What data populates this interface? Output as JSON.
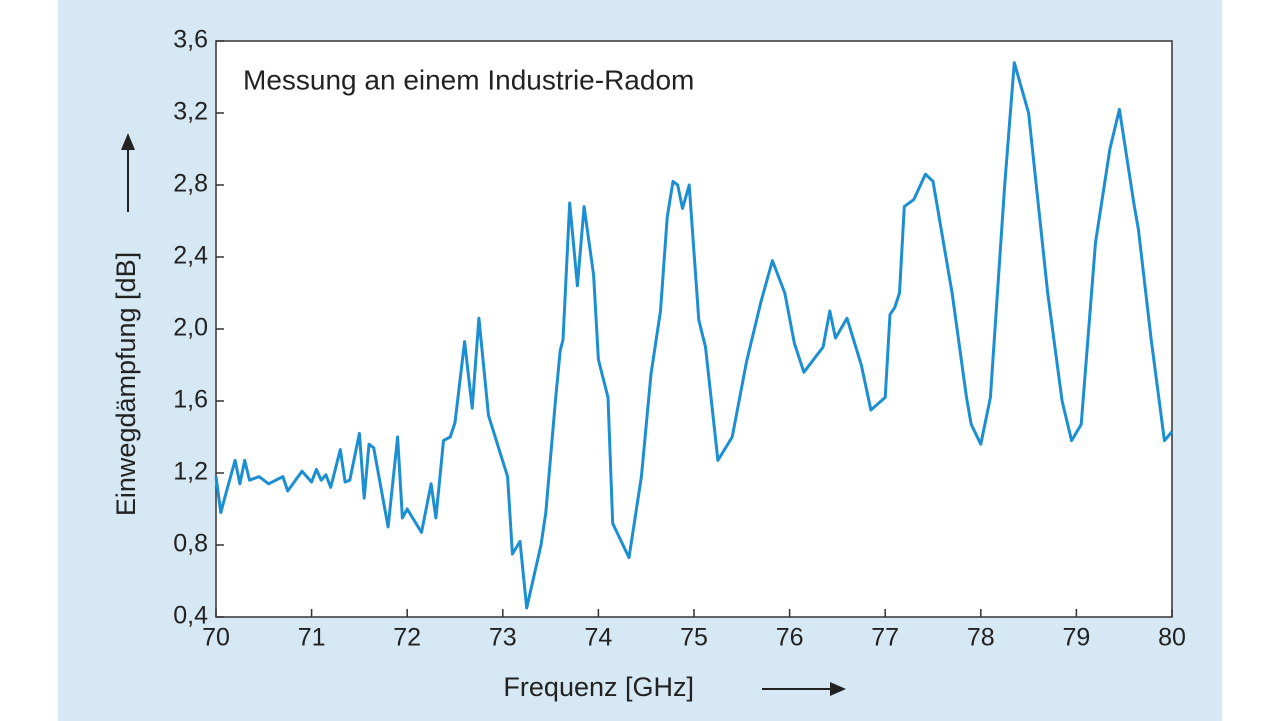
{
  "chart_data": {
    "type": "line",
    "annotation": "Messung an einem Industrie-Radom",
    "x_label": "Frequenz [GHz]",
    "y_label": "Einwegdämpfung [dB]",
    "xlim": [
      70,
      80
    ],
    "xticks": [
      70,
      71,
      72,
      73,
      74,
      75,
      76,
      77,
      78,
      79,
      80
    ],
    "ylim": [
      0.4,
      3.6
    ],
    "yticks": [
      {
        "value": 0.4,
        "label": "0,4"
      },
      {
        "value": 0.8,
        "label": "0,8"
      },
      {
        "value": 1.2,
        "label": "1,2"
      },
      {
        "value": 1.6,
        "label": "1,6"
      },
      {
        "value": 2.0,
        "label": "2,0"
      },
      {
        "value": 2.4,
        "label": "2,4"
      },
      {
        "value": 2.8,
        "label": "2,8"
      },
      {
        "value": 3.2,
        "label": "3,2"
      },
      {
        "value": 3.6,
        "label": "3,6"
      }
    ],
    "color": "#1b8fd2",
    "x": [
      70.0,
      70.05,
      70.1,
      70.2,
      70.25,
      70.3,
      70.35,
      70.45,
      70.55,
      70.7,
      70.75,
      70.9,
      71.0,
      71.05,
      71.1,
      71.15,
      71.2,
      71.3,
      71.35,
      71.4,
      71.5,
      71.55,
      71.6,
      71.65,
      71.8,
      71.9,
      71.95,
      72.0,
      72.15,
      72.25,
      72.3,
      72.38,
      72.45,
      72.5,
      72.6,
      72.68,
      72.75,
      72.85,
      72.95,
      73.05,
      73.1,
      73.18,
      73.25,
      73.4,
      73.45,
      73.55,
      73.6,
      73.63,
      73.7,
      73.78,
      73.85,
      73.95,
      74.0,
      74.1,
      74.15,
      74.32,
      74.45,
      74.55,
      74.65,
      74.72,
      74.78,
      74.83,
      74.88,
      74.95,
      75.05,
      75.12,
      75.25,
      75.4,
      75.55,
      75.7,
      75.82,
      75.95,
      76.05,
      76.15,
      76.35,
      76.42,
      76.48,
      76.6,
      76.75,
      76.85,
      77.0,
      77.05,
      77.1,
      77.15,
      77.2,
      77.3,
      77.42,
      77.5,
      77.7,
      77.85,
      77.9,
      78.0,
      78.1,
      78.25,
      78.35,
      78.5,
      78.7,
      78.85,
      78.95,
      79.05,
      79.2,
      79.35,
      79.45,
      79.6,
      79.65,
      79.78,
      79.92,
      80.0
    ],
    "values": [
      1.18,
      0.98,
      1.08,
      1.27,
      1.14,
      1.27,
      1.16,
      1.18,
      1.14,
      1.18,
      1.1,
      1.21,
      1.15,
      1.22,
      1.16,
      1.19,
      1.12,
      1.33,
      1.15,
      1.16,
      1.42,
      1.06,
      1.36,
      1.34,
      0.9,
      1.4,
      0.95,
      1.0,
      0.87,
      1.14,
      0.95,
      1.38,
      1.4,
      1.48,
      1.93,
      1.56,
      2.06,
      1.52,
      1.35,
      1.18,
      0.75,
      0.82,
      0.45,
      0.8,
      0.98,
      1.6,
      1.88,
      1.94,
      2.7,
      2.24,
      2.68,
      2.3,
      1.83,
      1.62,
      0.92,
      0.73,
      1.18,
      1.75,
      2.1,
      2.62,
      2.82,
      2.8,
      2.67,
      2.8,
      2.05,
      1.9,
      1.27,
      1.4,
      1.82,
      2.15,
      2.38,
      2.2,
      1.92,
      1.76,
      1.9,
      2.1,
      1.95,
      2.06,
      1.8,
      1.55,
      1.62,
      2.08,
      2.12,
      2.2,
      2.68,
      2.72,
      2.86,
      2.82,
      2.2,
      1.62,
      1.47,
      1.36,
      1.62,
      2.8,
      3.48,
      3.2,
      2.2,
      1.6,
      1.38,
      1.47,
      2.48,
      3.0,
      3.22,
      2.7,
      2.55,
      1.95,
      1.38,
      1.43
    ]
  }
}
